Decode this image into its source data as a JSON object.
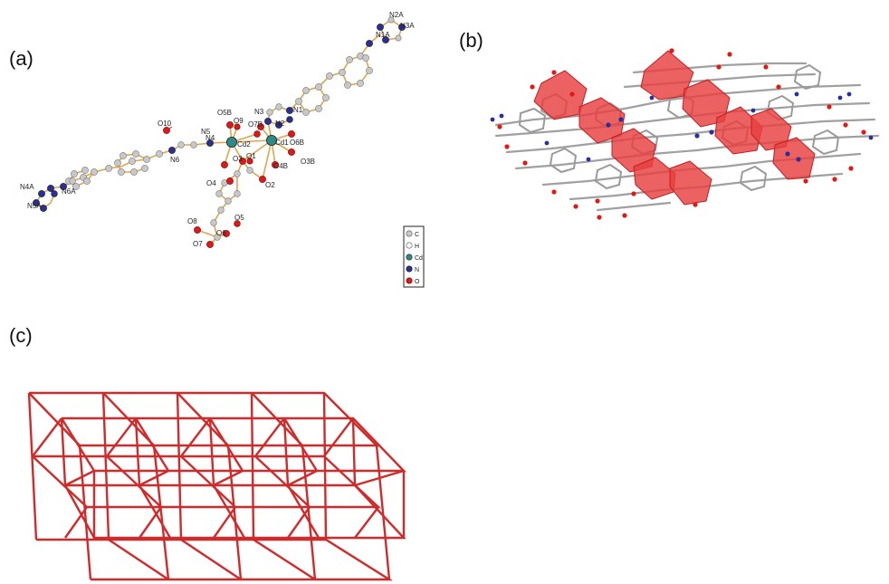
{
  "panels": {
    "a": {
      "label": "(a)"
    },
    "b": {
      "label": "(b)"
    },
    "c": {
      "label": "(c)"
    }
  },
  "atom_labels": {
    "N2A": "N2A",
    "N3A": "N3A",
    "N1A": "N1A",
    "N1": "N1",
    "N3": "N3",
    "N2": "N2",
    "O7B": "O7B",
    "O5B": "O5B",
    "O9": "O9",
    "O10": "O10",
    "N5": "N5",
    "N4": "N4",
    "Cd2": "Cd2",
    "Cd1": "Cd1",
    "O6B": "O6B",
    "N6": "N6",
    "O3": "O3",
    "O1": "O1",
    "O4B": "O4B",
    "O3B": "O3B",
    "O4": "O4",
    "O2": "O2",
    "O8": "O8",
    "O5": "O5",
    "O6": "O6",
    "O7": "O7",
    "N4A": "N4A",
    "N6A": "N6A",
    "N5A": "N5A"
  },
  "legend": {
    "items": [
      {
        "symbol": "C",
        "color": "#c8c8c8"
      },
      {
        "symbol": "H",
        "color": "#ffffff"
      },
      {
        "symbol": "Cd",
        "color": "#2f8a86"
      },
      {
        "symbol": "N",
        "color": "#2a2f9a"
      },
      {
        "symbol": "O",
        "color": "#e01818"
      }
    ]
  },
  "colors": {
    "bond": "#e0a54a",
    "network": "#d12a2a",
    "polyhedra": "#e84040",
    "stick_gray": "#a0a0a0"
  }
}
